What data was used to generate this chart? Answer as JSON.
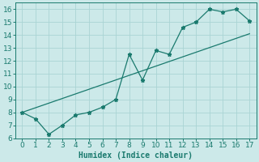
{
  "xlabel": "Humidex (Indice chaleur)",
  "x_zigzag": [
    0,
    1,
    2,
    3,
    4,
    5,
    6,
    7,
    8,
    9,
    10,
    11,
    12,
    13,
    14,
    15,
    16,
    17
  ],
  "y_zigzag": [
    8.0,
    7.5,
    6.3,
    7.0,
    7.8,
    8.0,
    8.4,
    9.0,
    12.5,
    10.5,
    12.8,
    12.5,
    14.6,
    15.0,
    16.0,
    15.8,
    16.0,
    15.1
  ],
  "line_x": [
    0,
    17
  ],
  "line_y": [
    8.0,
    14.1
  ],
  "bg_color": "#cce9e9",
  "line_color": "#1a7a6e",
  "grid_color": "#aad4d4",
  "xlim": [
    -0.5,
    17.5
  ],
  "ylim": [
    6.0,
    16.5
  ],
  "xticks": [
    0,
    1,
    2,
    3,
    4,
    5,
    6,
    7,
    8,
    9,
    10,
    11,
    12,
    13,
    14,
    15,
    16,
    17
  ],
  "yticks": [
    6,
    7,
    8,
    9,
    10,
    11,
    12,
    13,
    14,
    15,
    16
  ],
  "xlabel_fontsize": 7,
  "tick_fontsize": 6.5
}
